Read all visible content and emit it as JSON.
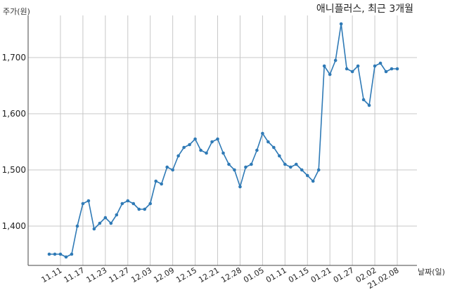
{
  "chart_data": {
    "type": "line",
    "title": "애니플러스, 최근 3개월",
    "ylabel": "주가(원)",
    "xlabel": "날짜(일)",
    "ylim": [
      1330,
      1775
    ],
    "yticks": [
      1400,
      1500,
      1600,
      1700
    ],
    "ytick_labels": [
      "1,400",
      "1,500",
      "1,600",
      "1,700"
    ],
    "grid": true,
    "color": "#2f7ab6",
    "xtick_labels": [
      "11.11",
      "11.17",
      "11.23",
      "11.27",
      "12.03",
      "12.09",
      "12.15",
      "12.21",
      "12.28",
      "01.05",
      "01.11",
      "01.15",
      "01.21",
      "01.27",
      "02.02",
      "21.02.08"
    ],
    "xtick_index": [
      2,
      6,
      10,
      14,
      18,
      22,
      26,
      30,
      34,
      38,
      42,
      46,
      50,
      54,
      58,
      62
    ],
    "series": [
      {
        "values": [
          1350,
          1350,
          1350,
          1345,
          1350,
          1400,
          1440,
          1445,
          1395,
          1405,
          1415,
          1405,
          1420,
          1440,
          1445,
          1440,
          1430,
          1430,
          1440,
          1480,
          1475,
          1505,
          1500,
          1525,
          1540,
          1545,
          1555,
          1535,
          1530,
          1550,
          1555,
          1530,
          1510,
          1500,
          1470,
          1505,
          1510,
          1535,
          1565,
          1550,
          1540,
          1525,
          1510,
          1505,
          1510,
          1500,
          1490,
          1480,
          1500,
          1685,
          1670,
          1695,
          1760,
          1680,
          1675,
          1685,
          1625,
          1615,
          1685,
          1690,
          1675,
          1680,
          1680
        ]
      }
    ]
  }
}
